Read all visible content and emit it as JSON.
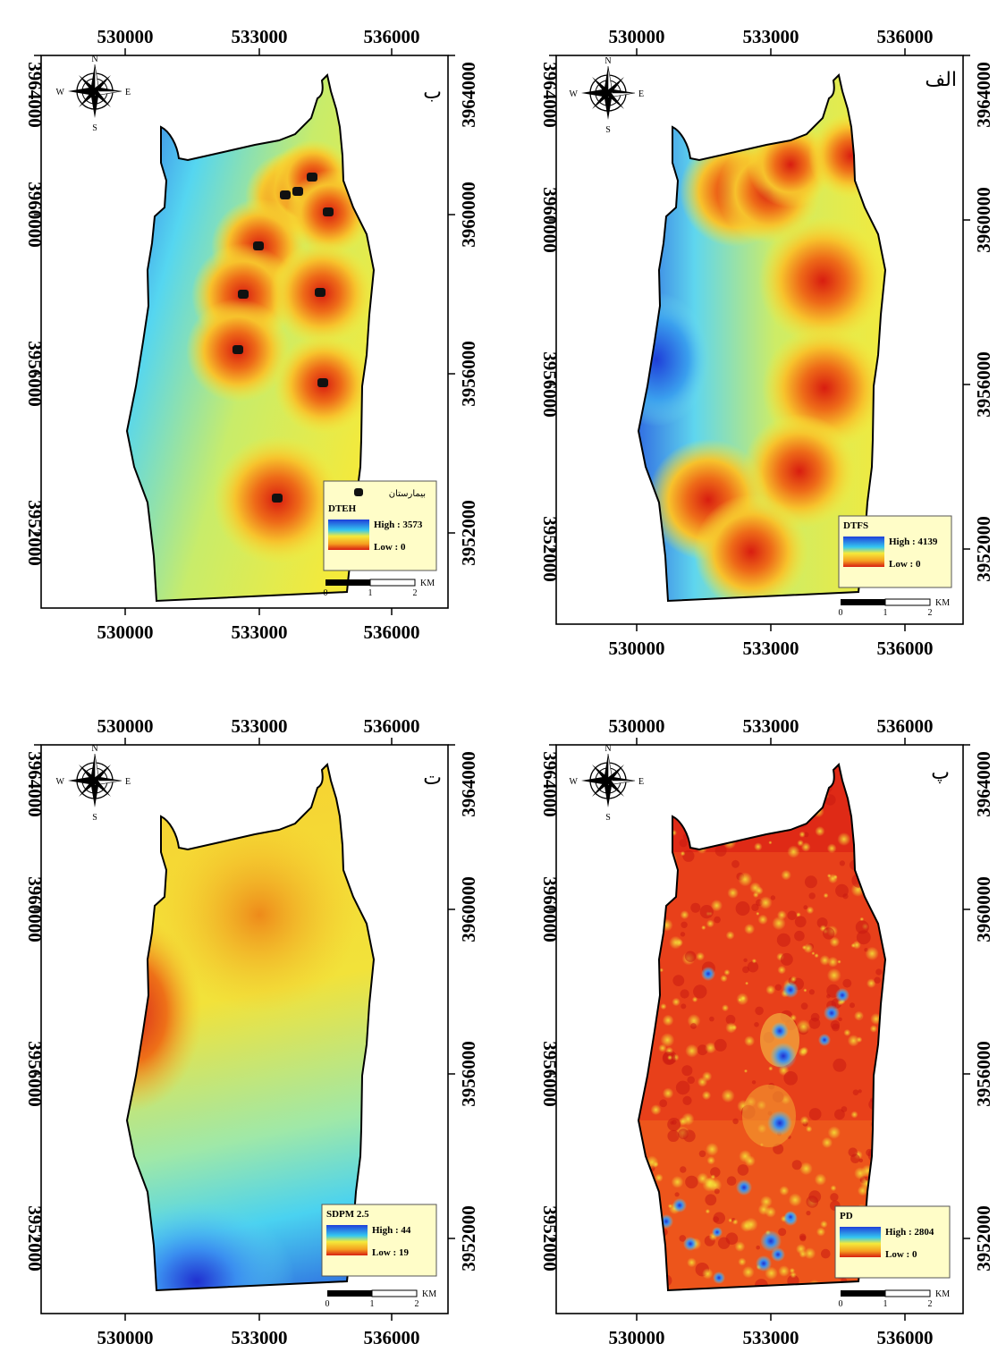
{
  "colors": {
    "ramp_high": "#1f3fd9",
    "ramp_mid": "#f5ea3a",
    "ramp_low": "#d81d10",
    "legend_bg": "#fffdc8",
    "frame": "#000000"
  },
  "panels": [
    {
      "id": "alef",
      "tag": "الف",
      "layer": "DTFS",
      "high": "High : 4139",
      "low": "Low : 0",
      "x_ticks": [
        "530000",
        "533000",
        "536000"
      ],
      "y_ticks": [
        "3964000",
        "3960000",
        "3956000",
        "3952000"
      ],
      "scale": {
        "l0": "0",
        "l1": "1",
        "l2": "2",
        "unit": "KM"
      },
      "compass": {
        "n": "N",
        "s": "S",
        "e": "E",
        "w": "W"
      }
    },
    {
      "id": "be",
      "tag": "ب",
      "layer": "DTEH",
      "high": "High : 3573",
      "low": "Low : 0",
      "point_label": "بیمارستان",
      "x_ticks": [
        "530000",
        "533000",
        "536000"
      ],
      "y_ticks": [
        "3964000",
        "3960000",
        "3956000",
        "3952000"
      ],
      "scale": {
        "l0": "0",
        "l1": "1",
        "l2": "2",
        "unit": "KM"
      },
      "compass": {
        "n": "N",
        "s": "S",
        "e": "E",
        "w": "W"
      }
    },
    {
      "id": "pe",
      "tag": "پ",
      "layer": "PD",
      "high": "High : 2804",
      "low": "Low : 0",
      "x_ticks": [
        "530000",
        "533000",
        "536000"
      ],
      "y_ticks": [
        "3964000",
        "3960000",
        "3956000",
        "3952000"
      ],
      "scale": {
        "l0": "0",
        "l1": "1",
        "l2": "2",
        "unit": "KM"
      },
      "compass": {
        "n": "N",
        "s": "S",
        "e": "E",
        "w": "W"
      }
    },
    {
      "id": "te",
      "tag": "ت",
      "layer": "SDPM 2.5",
      "high": "High : 44",
      "low": "Low : 19",
      "x_ticks": [
        "530000",
        "533000",
        "536000"
      ],
      "y_ticks": [
        "3964000",
        "3960000",
        "3956000",
        "3952000"
      ],
      "scale": {
        "l0": "0",
        "l1": "1",
        "l2": "2",
        "unit": "KM"
      },
      "compass": {
        "n": "N",
        "s": "S",
        "e": "E",
        "w": "W"
      }
    }
  ]
}
